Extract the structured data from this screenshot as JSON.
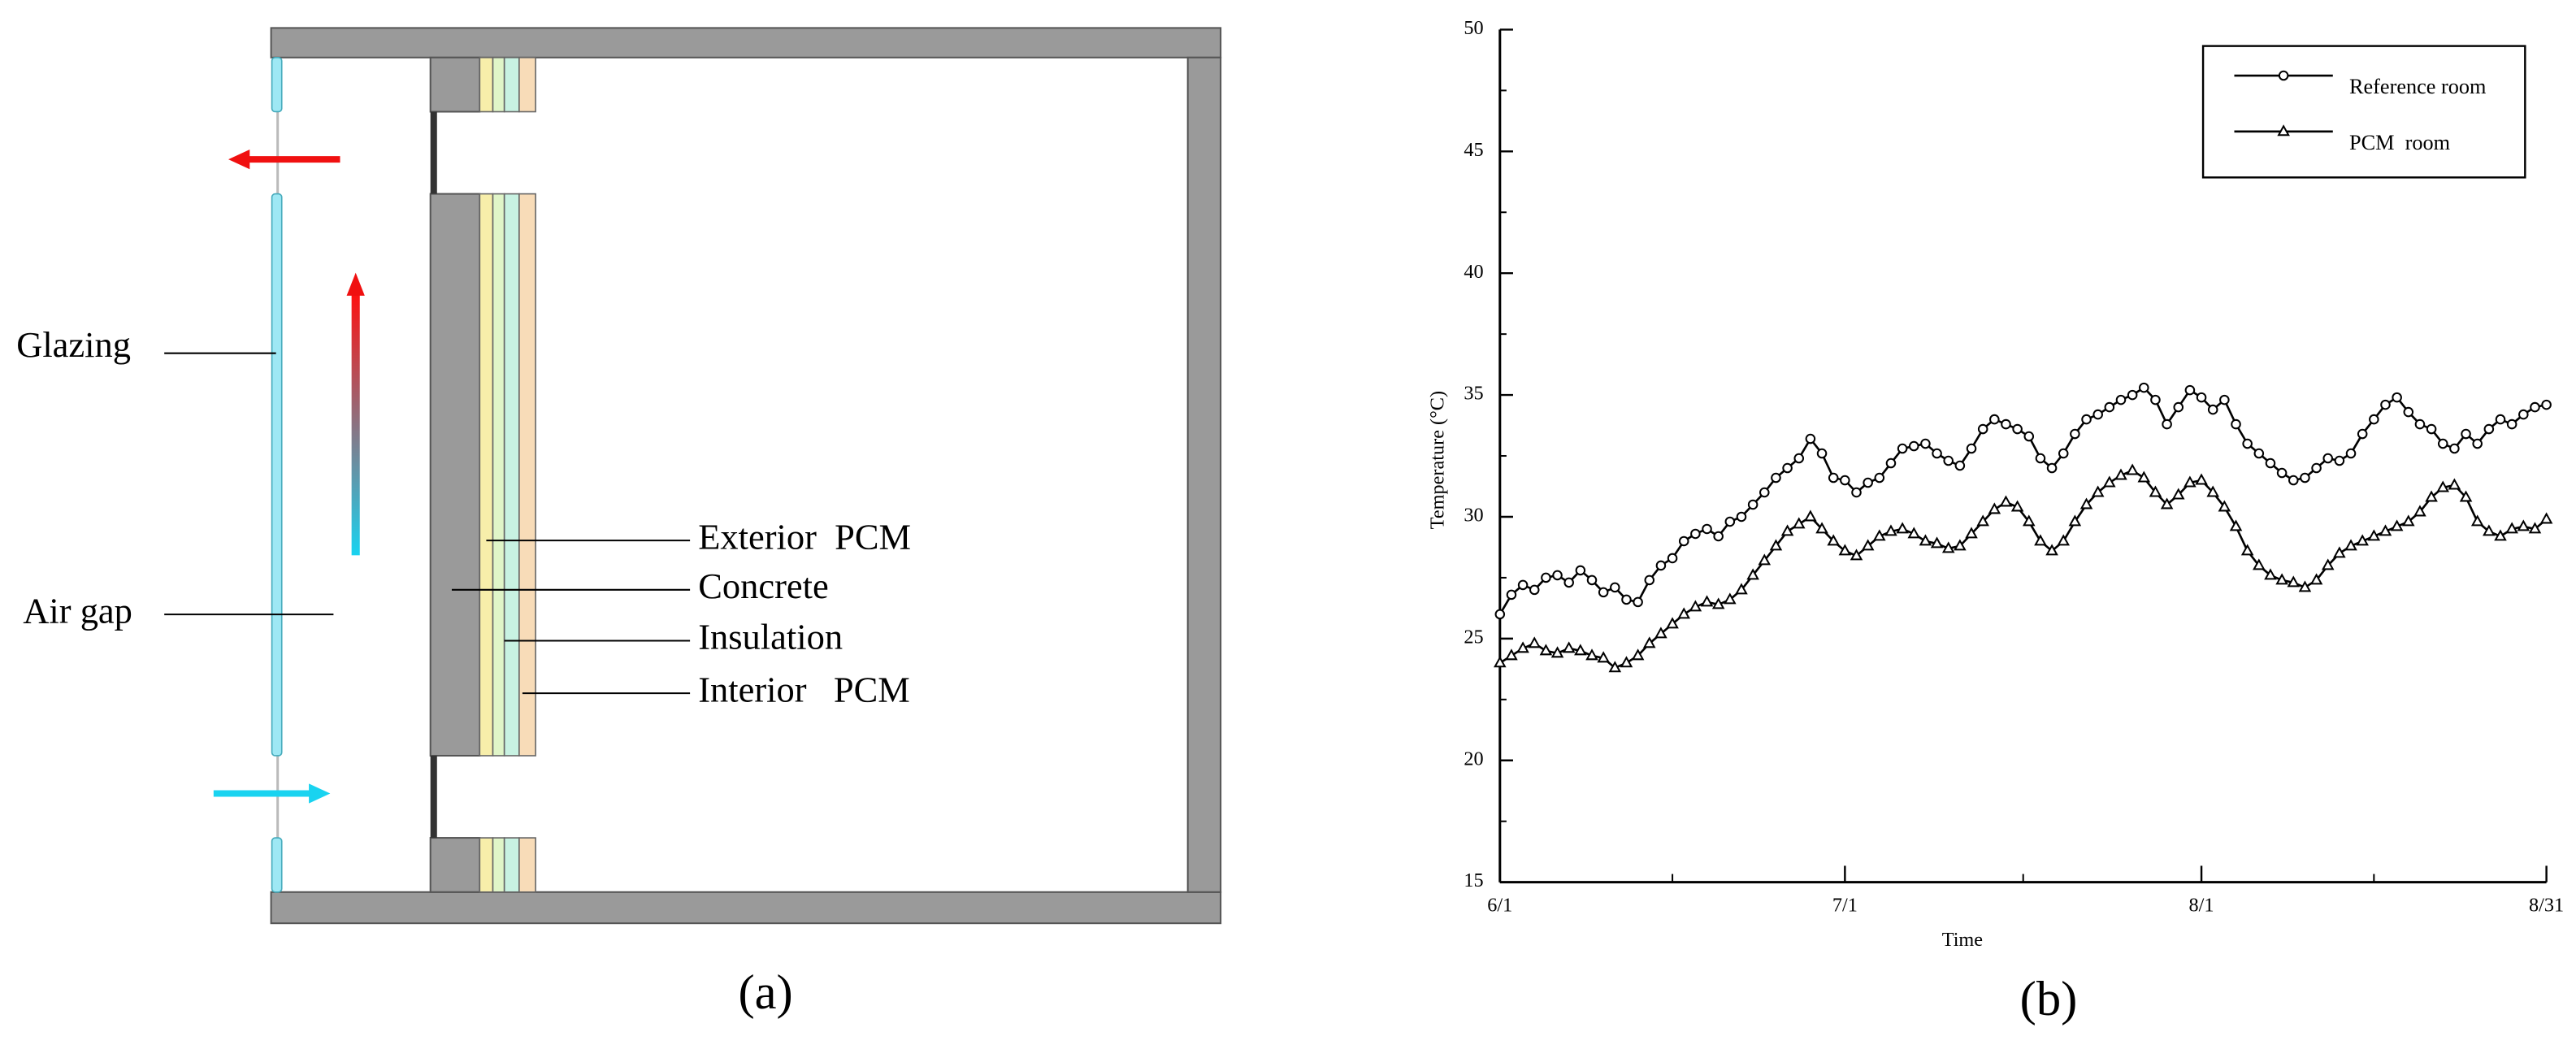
{
  "diagram": {
    "caption": "(a)",
    "labels": {
      "glazing": "Glazing",
      "air_gap": "Air gap",
      "exterior_pcm": "Exterior  PCM",
      "concrete": "Concrete",
      "insulation": "Insulation",
      "interior_pcm": "Interior   PCM"
    }
  },
  "chart_data": {
    "type": "line",
    "caption": "(b)",
    "x_label": "Time",
    "y_label": "Temperature (°C)",
    "x": [
      0,
      1,
      2,
      3,
      4,
      5,
      6,
      7,
      8,
      9,
      10,
      11,
      12,
      13,
      14,
      15,
      16,
      17,
      18,
      19,
      20,
      21,
      22,
      23,
      24,
      25,
      26,
      27,
      28,
      29,
      30,
      31,
      32,
      33,
      34,
      35,
      36,
      37,
      38,
      39,
      40,
      41,
      42,
      43,
      44,
      45,
      46,
      47,
      48,
      49,
      50,
      51,
      52,
      53,
      54,
      55,
      56,
      57,
      58,
      59,
      60,
      61,
      62,
      63,
      64,
      65,
      66,
      67,
      68,
      69,
      70,
      71,
      72,
      73,
      74,
      75,
      76,
      77,
      78,
      79,
      80,
      81,
      82,
      83,
      84,
      85,
      86,
      87,
      88,
      89,
      90,
      91
    ],
    "series": [
      {
        "name": "Reference room",
        "color": "#000000",
        "marker": "circle",
        "values": [
          26.0,
          26.8,
          27.2,
          27.0,
          27.5,
          27.6,
          27.3,
          27.8,
          27.4,
          26.9,
          27.1,
          26.6,
          26.5,
          27.4,
          28.0,
          28.3,
          29.0,
          29.3,
          29.5,
          29.2,
          29.8,
          30.0,
          30.5,
          31.0,
          31.6,
          32.0,
          32.4,
          33.2,
          32.6,
          31.6,
          31.5,
          31.0,
          31.4,
          31.6,
          32.2,
          32.8,
          32.9,
          33.0,
          32.6,
          32.3,
          32.1,
          32.8,
          33.6,
          34.0,
          33.8,
          33.6,
          33.3,
          32.4,
          32.0,
          32.6,
          33.4,
          34.0,
          34.2,
          34.5,
          34.8,
          35.0,
          35.3,
          34.8,
          33.8,
          34.5,
          35.2,
          34.9,
          34.4,
          34.8,
          33.8,
          33.0,
          32.6,
          32.2,
          31.8,
          31.5,
          31.6,
          32.0,
          32.4,
          32.3,
          32.6,
          33.4,
          34.0,
          34.6,
          34.9,
          34.3,
          33.8,
          33.6,
          33.0,
          32.8,
          33.4,
          33.0,
          33.6,
          34.0,
          33.8,
          34.2,
          34.5,
          34.6
        ]
      },
      {
        "name": "PCM  room",
        "color": "#000000",
        "marker": "triangle",
        "values": [
          24.0,
          24.3,
          24.6,
          24.8,
          24.5,
          24.4,
          24.6,
          24.5,
          24.3,
          24.2,
          23.8,
          24.0,
          24.3,
          24.8,
          25.2,
          25.6,
          26.0,
          26.3,
          26.5,
          26.4,
          26.6,
          27.0,
          27.6,
          28.2,
          28.8,
          29.4,
          29.7,
          30.0,
          29.5,
          29.0,
          28.6,
          28.4,
          28.8,
          29.2,
          29.4,
          29.5,
          29.3,
          29.0,
          28.9,
          28.7,
          28.8,
          29.3,
          29.8,
          30.3,
          30.6,
          30.4,
          29.8,
          29.0,
          28.6,
          29.0,
          29.8,
          30.5,
          31.0,
          31.4,
          31.7,
          31.9,
          31.6,
          31.0,
          30.5,
          30.9,
          31.4,
          31.5,
          31.0,
          30.4,
          29.6,
          28.6,
          28.0,
          27.6,
          27.4,
          27.3,
          27.1,
          27.4,
          28.0,
          28.5,
          28.8,
          29.0,
          29.2,
          29.4,
          29.6,
          29.8,
          30.2,
          30.8,
          31.2,
          31.3,
          30.8,
          29.8,
          29.4,
          29.2,
          29.5,
          29.6,
          29.5,
          29.9
        ]
      }
    ],
    "xlim": [
      0,
      91
    ],
    "xticks": [
      {
        "value": 0,
        "label": "6/1"
      },
      {
        "value": 30,
        "label": "7/1"
      },
      {
        "value": 61,
        "label": "8/1"
      },
      {
        "value": 91,
        "label": "8/31"
      }
    ],
    "ylim": [
      15,
      50
    ],
    "yticks": [
      15,
      20,
      25,
      30,
      35,
      40,
      45,
      50
    ],
    "legend": "upper right",
    "grid": false
  }
}
